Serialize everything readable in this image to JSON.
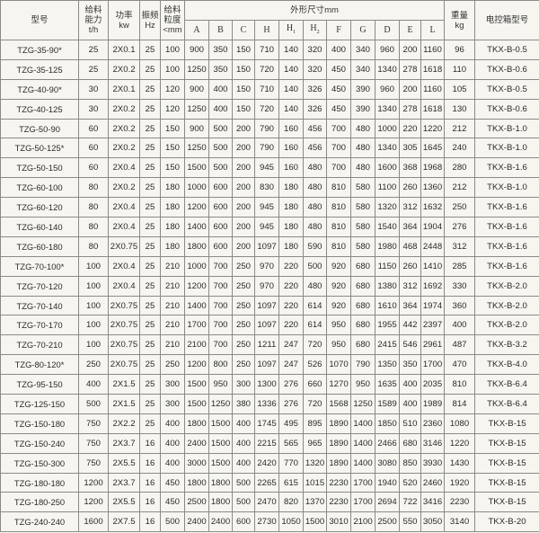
{
  "header": {
    "model": "型号",
    "capacity": [
      "给料",
      "能力",
      "t/h"
    ],
    "power": [
      "功率",
      "kw"
    ],
    "frequency": [
      "振频",
      "Hz"
    ],
    "particle": [
      "给料",
      "粒度",
      "<mm"
    ],
    "dimensions": "外形尺寸mm",
    "dim_cols": [
      "A",
      "B",
      "C",
      "H",
      "H1",
      "H2",
      "F",
      "G",
      "D",
      "E",
      "L"
    ],
    "weight": [
      "重量",
      "kg"
    ],
    "control_box": "电控箱型号"
  },
  "rows": [
    [
      "TZG-35-90*",
      "25",
      "2X0.1",
      "25",
      "100",
      "900",
      "350",
      "150",
      "710",
      "140",
      "320",
      "400",
      "340",
      "960",
      "200",
      "1160",
      "96",
      "TKX-B-0.5"
    ],
    [
      "TZG-35-125",
      "25",
      "2X0.2",
      "25",
      "100",
      "1250",
      "350",
      "150",
      "720",
      "140",
      "320",
      "450",
      "340",
      "1340",
      "278",
      "1618",
      "110",
      "TKX-B-0.6"
    ],
    [
      "TZG-40-90*",
      "30",
      "2X0.1",
      "25",
      "120",
      "900",
      "400",
      "150",
      "710",
      "140",
      "326",
      "450",
      "390",
      "960",
      "200",
      "1160",
      "105",
      "TKX-B-0.5"
    ],
    [
      "TZG-40-125",
      "30",
      "2X0.2",
      "25",
      "120",
      "1250",
      "400",
      "150",
      "720",
      "140",
      "326",
      "450",
      "390",
      "1340",
      "278",
      "1618",
      "130",
      "TKX-B-0.6"
    ],
    [
      "TZG-50-90",
      "60",
      "2X0.2",
      "25",
      "150",
      "900",
      "500",
      "200",
      "790",
      "160",
      "456",
      "700",
      "480",
      "1000",
      "220",
      "1220",
      "212",
      "TKX-B-1.0"
    ],
    [
      "TZG-50-125*",
      "60",
      "2X0.2",
      "25",
      "150",
      "1250",
      "500",
      "200",
      "790",
      "160",
      "456",
      "700",
      "480",
      "1340",
      "305",
      "1645",
      "240",
      "TKX-B-1.0"
    ],
    [
      "TZG-50-150",
      "60",
      "2X0.4",
      "25",
      "150",
      "1500",
      "500",
      "200",
      "945",
      "160",
      "480",
      "700",
      "480",
      "1600",
      "368",
      "1968",
      "280",
      "TKX-B-1.6"
    ],
    [
      "TZG-60-100",
      "80",
      "2X0.2",
      "25",
      "180",
      "1000",
      "600",
      "200",
      "830",
      "180",
      "480",
      "810",
      "580",
      "1100",
      "260",
      "1360",
      "212",
      "TKX-B-1.0"
    ],
    [
      "TZG-60-120",
      "80",
      "2X0.4",
      "25",
      "180",
      "1200",
      "600",
      "200",
      "945",
      "180",
      "480",
      "810",
      "580",
      "1320",
      "312",
      "1632",
      "250",
      "TKX-B-1.6"
    ],
    [
      "TZG-60-140",
      "80",
      "2X0.4",
      "25",
      "180",
      "1400",
      "600",
      "200",
      "945",
      "180",
      "480",
      "810",
      "580",
      "1540",
      "364",
      "1904",
      "276",
      "TKX-B-1.6"
    ],
    [
      "TZG-60-180",
      "80",
      "2X0.75",
      "25",
      "180",
      "1800",
      "600",
      "200",
      "1097",
      "180",
      "590",
      "810",
      "580",
      "1980",
      "468",
      "2448",
      "312",
      "TKX-B-1.6"
    ],
    [
      "TZG-70-100*",
      "100",
      "2X0.4",
      "25",
      "210",
      "1000",
      "700",
      "250",
      "970",
      "220",
      "500",
      "920",
      "680",
      "1150",
      "260",
      "1410",
      "285",
      "TKX-B-1.6"
    ],
    [
      "TZG-70-120",
      "100",
      "2X0.4",
      "25",
      "210",
      "1200",
      "700",
      "250",
      "970",
      "220",
      "480",
      "920",
      "680",
      "1380",
      "312",
      "1692",
      "330",
      "TKX-B-2.0"
    ],
    [
      "TZG-70-140",
      "100",
      "2X0.75",
      "25",
      "210",
      "1400",
      "700",
      "250",
      "1097",
      "220",
      "614",
      "920",
      "680",
      "1610",
      "364",
      "1974",
      "360",
      "TKX-B-2.0"
    ],
    [
      "TZG-70-170",
      "100",
      "2X0.75",
      "25",
      "210",
      "1700",
      "700",
      "250",
      "1097",
      "220",
      "614",
      "950",
      "680",
      "1955",
      "442",
      "2397",
      "400",
      "TKX-B-2.0"
    ],
    [
      "TZG-70-210",
      "100",
      "2X0.75",
      "25",
      "210",
      "2100",
      "700",
      "250",
      "1211",
      "247",
      "720",
      "950",
      "680",
      "2415",
      "546",
      "2961",
      "487",
      "TKX-B-3.2"
    ],
    [
      "TZG-80-120*",
      "250",
      "2X0.75",
      "25",
      "250",
      "1200",
      "800",
      "250",
      "1097",
      "247",
      "526",
      "1070",
      "790",
      "1350",
      "350",
      "1700",
      "470",
      "TKX-B-4.0"
    ],
    [
      "TZG-95-150",
      "400",
      "2X1.5",
      "25",
      "300",
      "1500",
      "950",
      "300",
      "1300",
      "276",
      "660",
      "1270",
      "950",
      "1635",
      "400",
      "2035",
      "810",
      "TKX-B-6.4"
    ],
    [
      "TZG-125-150",
      "500",
      "2X1.5",
      "25",
      "300",
      "1500",
      "1250",
      "380",
      "1336",
      "276",
      "720",
      "1568",
      "1250",
      "1589",
      "400",
      "1989",
      "814",
      "TKX-B-6.4"
    ],
    [
      "TZG-150-180",
      "750",
      "2X2.2",
      "25",
      "400",
      "1800",
      "1500",
      "400",
      "1745",
      "495",
      "895",
      "1890",
      "1400",
      "1850",
      "510",
      "2360",
      "1080",
      "TKX-B-15"
    ],
    [
      "TZG-150-240",
      "750",
      "2X3.7",
      "16",
      "400",
      "2400",
      "1500",
      "400",
      "2215",
      "565",
      "965",
      "1890",
      "1400",
      "2466",
      "680",
      "3146",
      "1220",
      "TKX-B-15"
    ],
    [
      "TZG-150-300",
      "750",
      "2X5.5",
      "16",
      "400",
      "3000",
      "1500",
      "400",
      "2420",
      "770",
      "1320",
      "1890",
      "1400",
      "3080",
      "850",
      "3930",
      "1430",
      "TKX-B-15"
    ],
    [
      "TZG-180-180",
      "1200",
      "2X3.7",
      "16",
      "450",
      "1800",
      "1800",
      "500",
      "2265",
      "615",
      "1015",
      "2230",
      "1700",
      "1940",
      "520",
      "2460",
      "1920",
      "TKX-B-15"
    ],
    [
      "TZG-180-250",
      "1200",
      "2X5.5",
      "16",
      "450",
      "2500",
      "1800",
      "500",
      "2470",
      "820",
      "1370",
      "2230",
      "1700",
      "2694",
      "722",
      "3416",
      "2230",
      "TKX-B-15"
    ],
    [
      "TZG-240-240",
      "1600",
      "2X7.5",
      "16",
      "500",
      "2400",
      "2400",
      "600",
      "2730",
      "1050",
      "1500",
      "3010",
      "2100",
      "2500",
      "550",
      "3050",
      "3140",
      "TKX-B-20"
    ]
  ]
}
